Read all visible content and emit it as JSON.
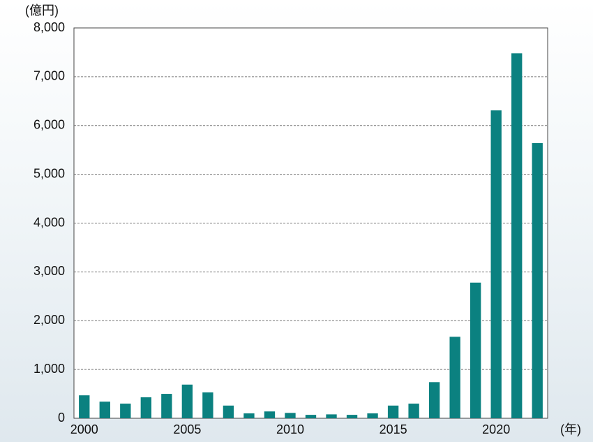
{
  "chart_data": {
    "type": "bar",
    "y_axis_label": "(億円)",
    "x_axis_label": "(年)",
    "categories": [
      "2000",
      null,
      null,
      null,
      null,
      "2005",
      null,
      null,
      null,
      null,
      "2010",
      null,
      null,
      null,
      null,
      "2015",
      null,
      null,
      null,
      null,
      "2020",
      null,
      null
    ],
    "values": [
      470,
      340,
      300,
      430,
      500,
      690,
      530,
      260,
      100,
      140,
      110,
      70,
      80,
      70,
      100,
      260,
      300,
      740,
      1670,
      2780,
      6310,
      7480,
      5640
    ],
    "color": "#0b8180",
    "ylim": [
      0,
      8000
    ],
    "yticks": [
      0,
      {
        "value": 1000,
        "label": "1,000"
      },
      {
        "value": 2000,
        "label": "2,000"
      },
      {
        "value": 3000,
        "label": "3,000"
      },
      {
        "value": 4000,
        "label": "4,000"
      },
      {
        "value": 5000,
        "label": "5,000"
      },
      {
        "value": 6000,
        "label": "6,000"
      },
      {
        "value": 7000,
        "label": "7,000"
      },
      {
        "value": 8000,
        "label": "8,000"
      }
    ],
    "grid": true
  }
}
